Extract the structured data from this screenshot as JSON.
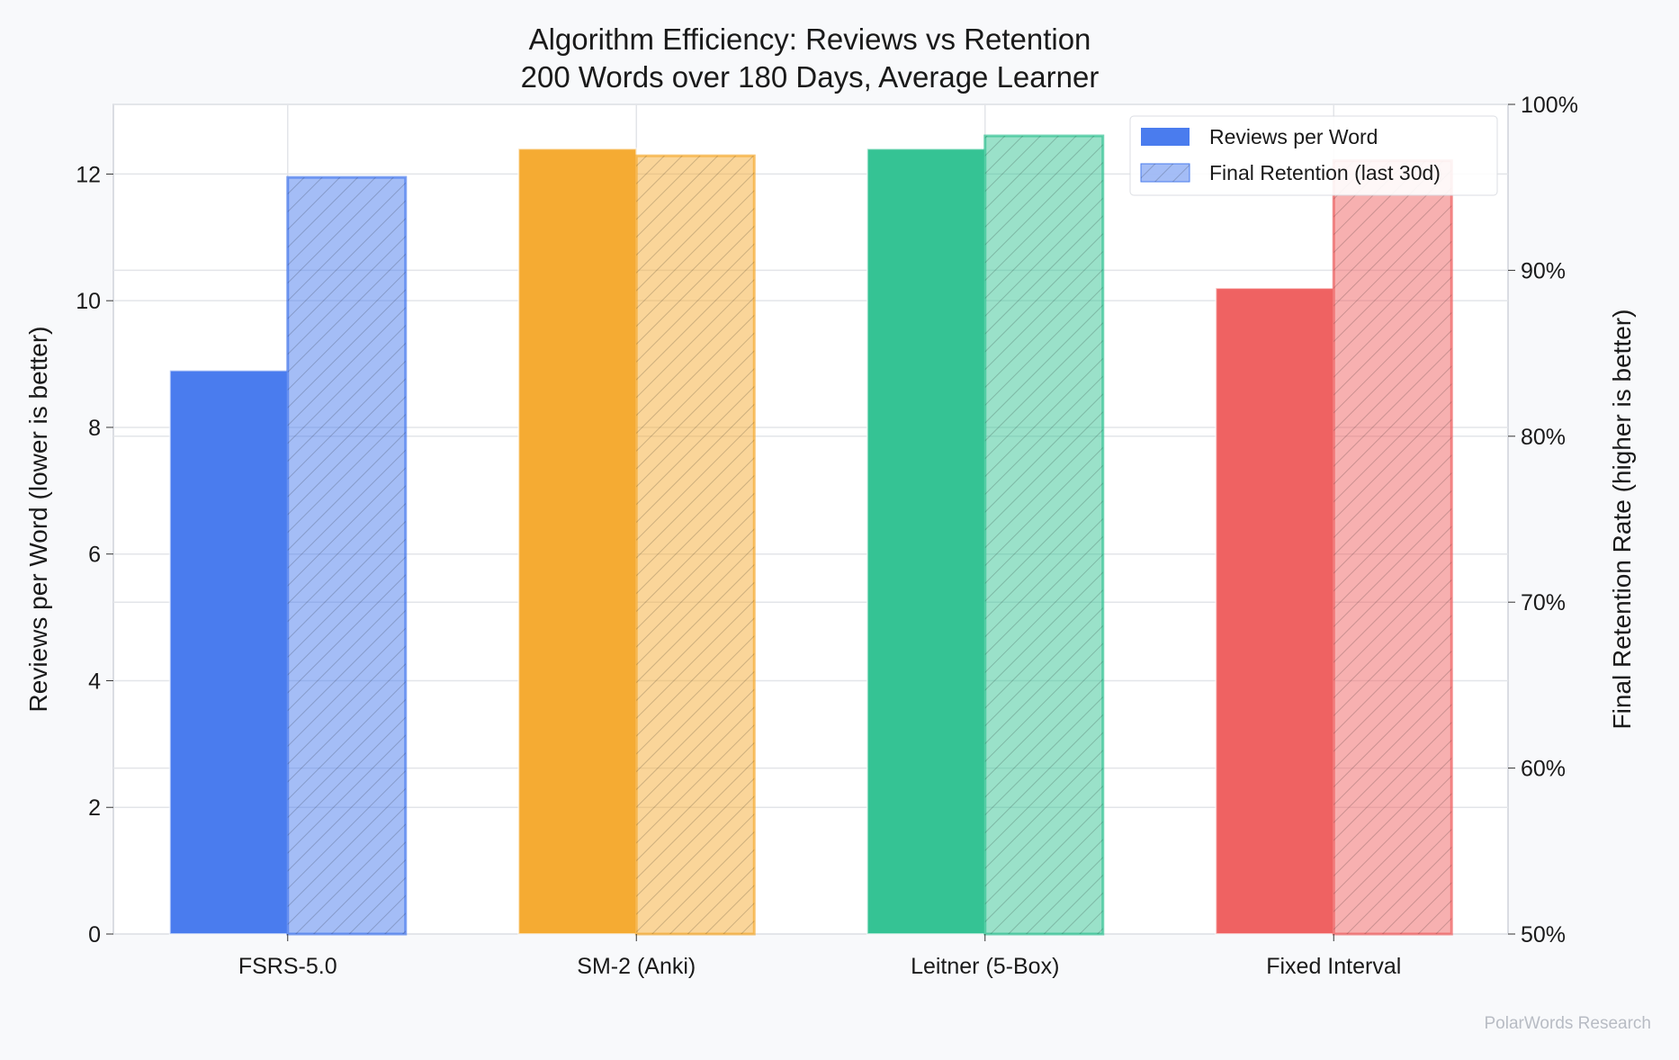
{
  "chart_data": {
    "type": "bar",
    "title": "Algorithm Efficiency: Reviews vs Retention",
    "subtitle": "200 Words over 180 Days, Average Learner",
    "categories": [
      "FSRS-5.0",
      "SM-2 (Anki)",
      "Leitner (5-Box)",
      "Fixed Interval"
    ],
    "colors": [
      "#4a7cee",
      "#f5ab33",
      "#35c394",
      "#ef6262"
    ],
    "series": [
      {
        "name": "Reviews per Word",
        "axis": "left",
        "values": [
          8.9,
          12.4,
          12.4,
          10.2
        ],
        "style": "solid"
      },
      {
        "name": "Final Retention (last 30d)",
        "axis": "right",
        "values": [
          95.6,
          96.9,
          98.1,
          96.6
        ],
        "style": "hatched",
        "unit": "%"
      }
    ],
    "ylabel": "Reviews per Word (lower is better)",
    "ylabel_right": "Final Retention Rate (higher is better)",
    "ylim": [
      0,
      13.1
    ],
    "ylim_right": [
      50,
      100
    ],
    "yticks": [
      0,
      2,
      4,
      6,
      8,
      10,
      12
    ],
    "yticks_right": [
      "50%",
      "60%",
      "70%",
      "80%",
      "90%",
      "100%"
    ],
    "grid": true,
    "legend_position": "top-right"
  },
  "watermark": "PolarWords Research"
}
